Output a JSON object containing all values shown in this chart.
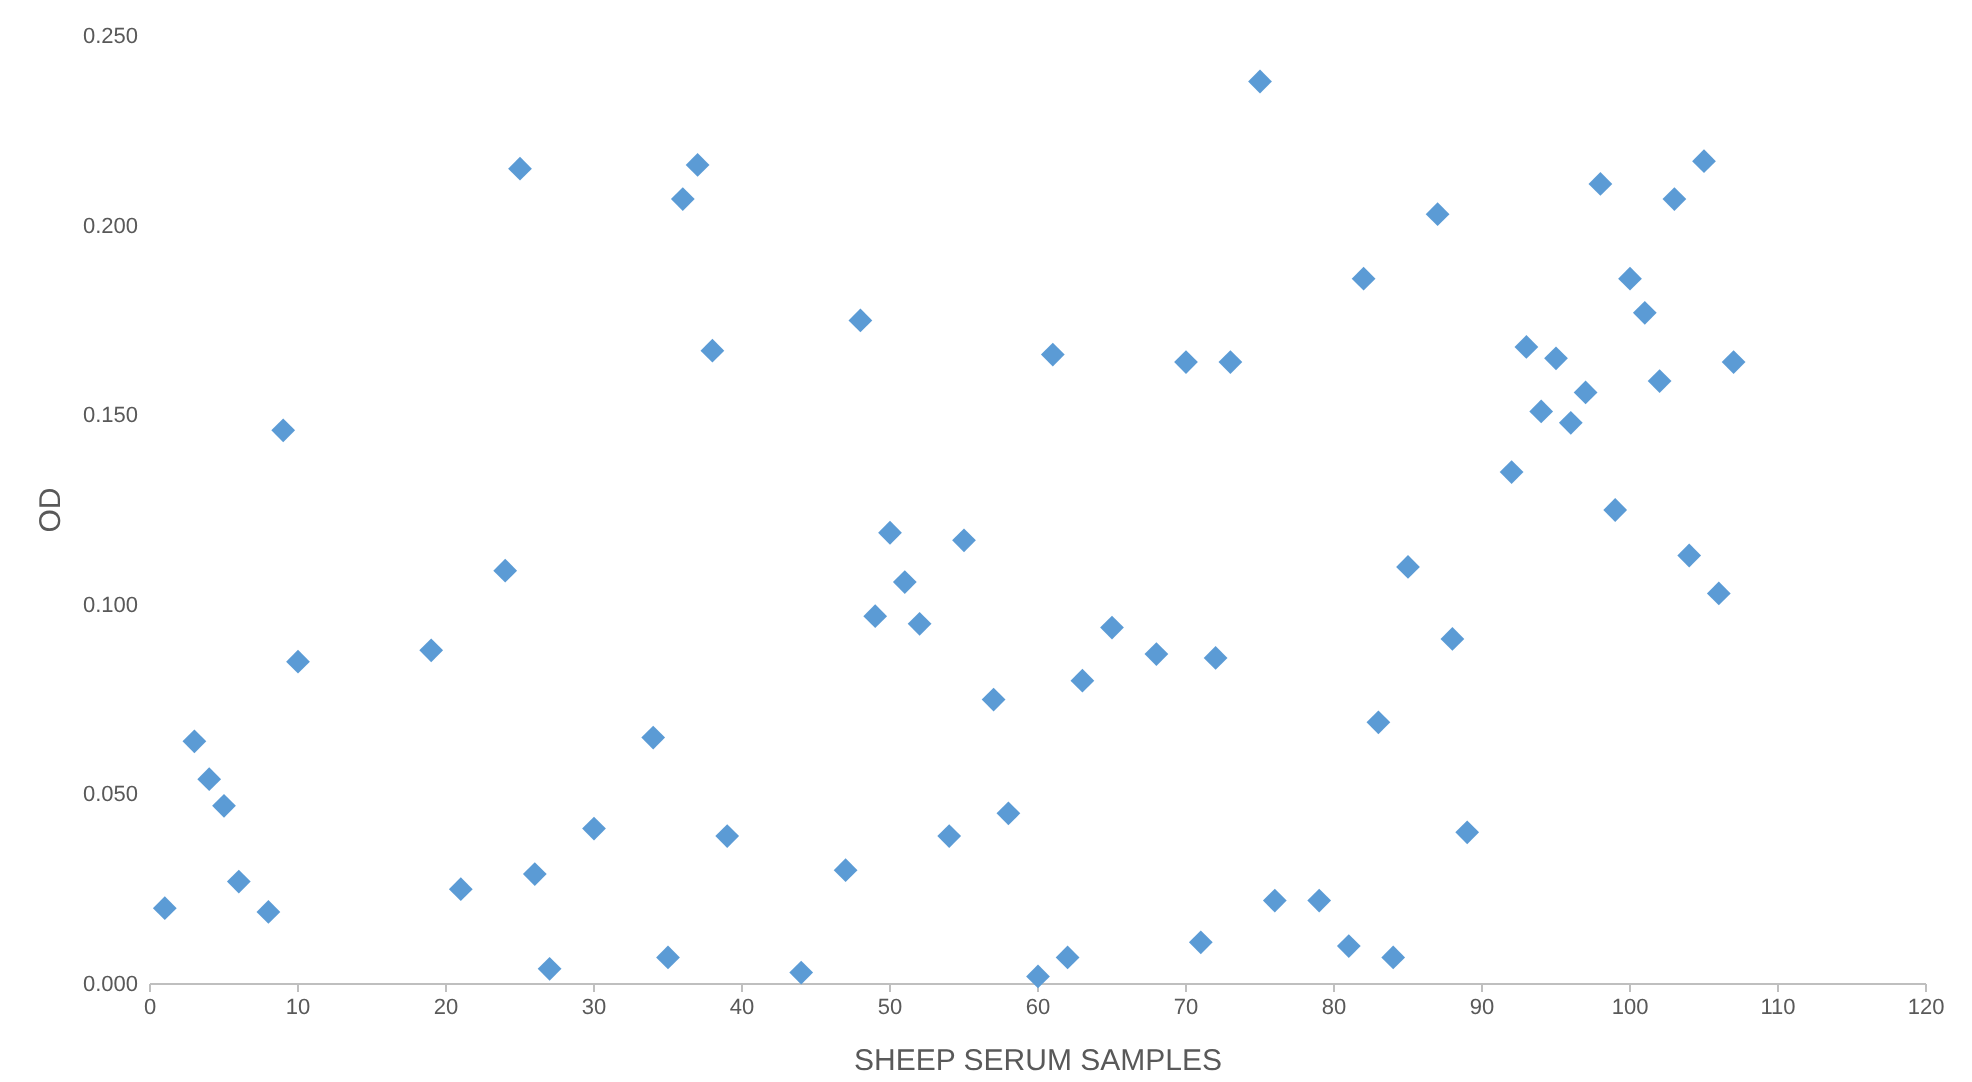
{
  "chart_data": {
    "type": "scatter",
    "xlabel": "SHEEP SERUM SAMPLES",
    "ylabel": "OD",
    "marker": "diamond",
    "grid": false,
    "xlim": [
      0,
      120
    ],
    "xticks": [
      0,
      10,
      20,
      30,
      40,
      50,
      60,
      70,
      80,
      90,
      100,
      110,
      120
    ],
    "ylim": [
      0,
      0.25
    ],
    "yticks": [
      {
        "value": 0,
        "label": "0.000"
      },
      {
        "value": 0.05,
        "label": "0.050"
      },
      {
        "value": 0.1,
        "label": "0.100"
      },
      {
        "value": 0.15,
        "label": "0.150"
      },
      {
        "value": 0.2,
        "label": "0.200"
      },
      {
        "value": 0.25,
        "label": "0.250"
      }
    ],
    "series": [
      {
        "color": "#5b9bd5",
        "x": [
          1,
          3,
          4,
          5,
          6,
          8,
          9,
          10,
          19,
          21,
          24,
          25,
          26,
          27,
          30,
          34,
          35,
          36,
          37,
          38,
          39,
          44,
          47,
          48,
          49,
          50,
          51,
          52,
          54,
          55,
          57,
          58,
          60,
          61,
          62,
          63,
          65,
          68,
          70,
          71,
          72,
          73,
          75,
          76,
          79,
          81,
          82,
          83,
          84,
          85,
          87,
          88,
          89,
          92,
          93,
          94,
          95,
          96,
          97,
          98,
          99,
          100,
          101,
          102,
          103,
          104,
          105,
          106,
          107
        ],
        "values": [
          0.02,
          0.064,
          0.054,
          0.047,
          0.027,
          0.019,
          0.146,
          0.085,
          0.088,
          0.025,
          0.109,
          0.215,
          0.029,
          0.004,
          0.041,
          0.065,
          0.007,
          0.207,
          0.216,
          0.167,
          0.039,
          0.003,
          0.03,
          0.175,
          0.097,
          0.119,
          0.106,
          0.095,
          0.039,
          0.117,
          0.075,
          0.045,
          0.002,
          0.166,
          0.007,
          0.08,
          0.094,
          0.087,
          0.164,
          0.011,
          0.086,
          0.164,
          0.238,
          0.022,
          0.022,
          0.01,
          0.186,
          0.069,
          0.007,
          0.11,
          0.203,
          0.091,
          0.04,
          0.135,
          0.168,
          0.151,
          0.165,
          0.148,
          0.156,
          0.211,
          0.125,
          0.186,
          0.177,
          0.159,
          0.207,
          0.113,
          0.217,
          0.103,
          0.164
        ]
      }
    ]
  }
}
